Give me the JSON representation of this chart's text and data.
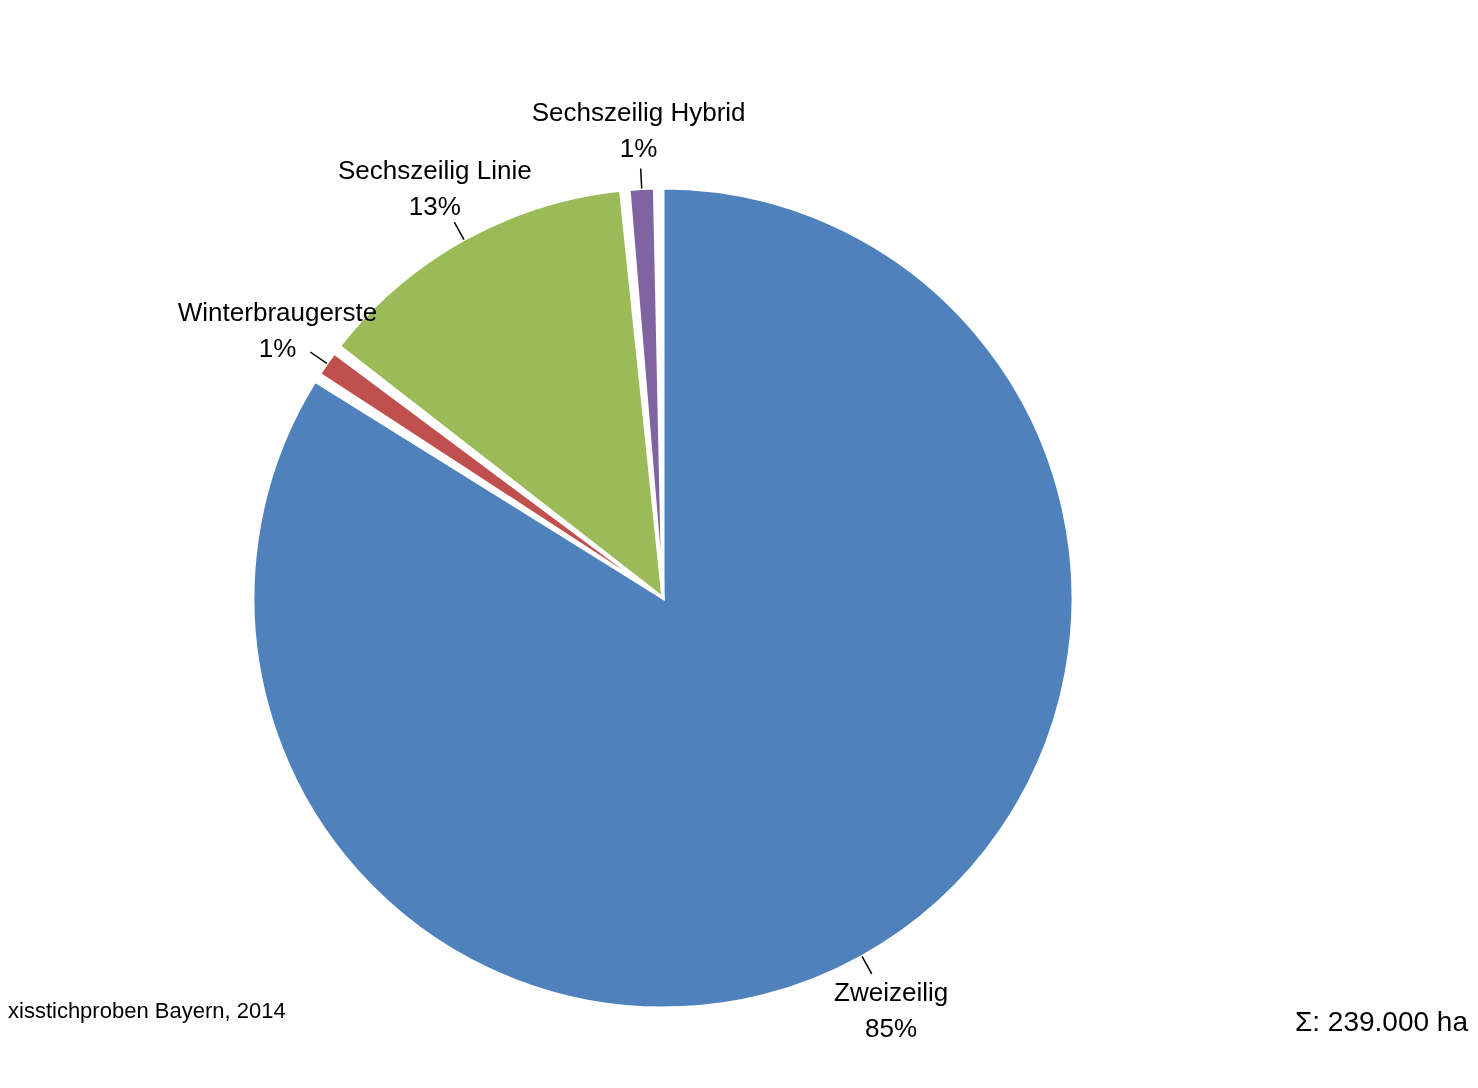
{
  "chart_data": {
    "type": "pie",
    "categories": [
      "Zweizeilig",
      "Winterbraugerste",
      "Sechszeilig Linie",
      "Sechszeilig Hybrid"
    ],
    "values": [
      85,
      1,
      13,
      1
    ],
    "colors": [
      "#4f81bd",
      "#c0504d",
      "#9bbb59",
      "#8064a2"
    ],
    "value_labels": [
      "85%",
      "1%",
      "13%",
      "1%"
    ],
    "legend": false,
    "annotations": [
      "xisstichproben Bayern, 2014",
      "Σ: 239.000 ha"
    ]
  }
}
